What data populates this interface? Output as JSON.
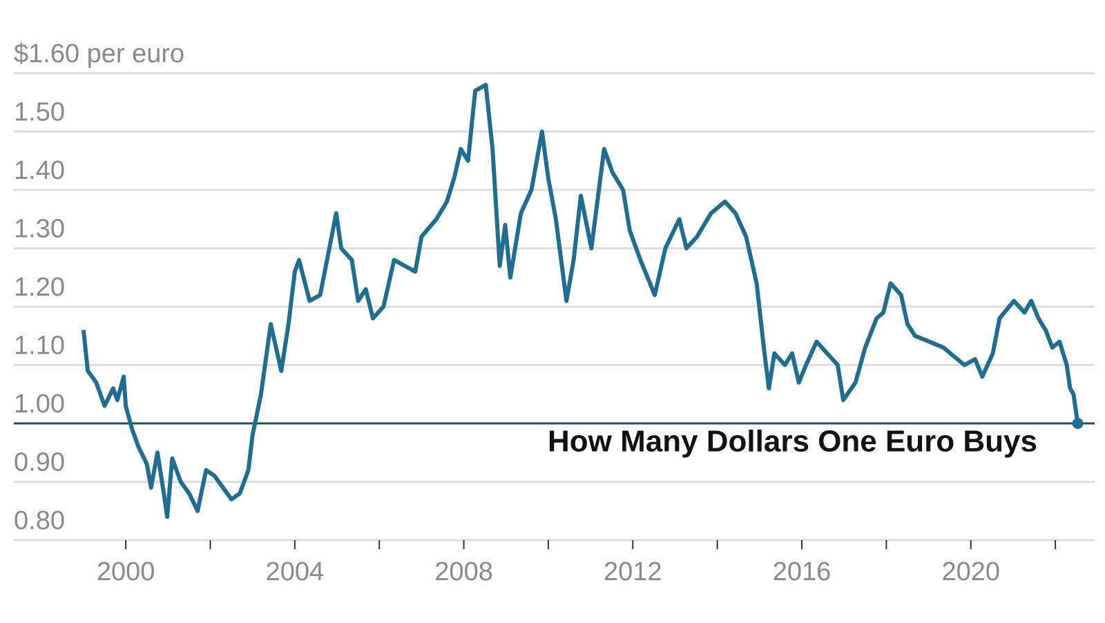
{
  "chart_data": {
    "type": "line",
    "title": "How Many Dollars One Euro Buys",
    "x": [
      1999.0,
      1999.1,
      1999.3,
      1999.5,
      1999.7,
      1999.8,
      1999.95,
      2000.0,
      2000.15,
      2000.3,
      2000.5,
      2000.6,
      2000.75,
      2000.9,
      2000.98,
      2001.1,
      2001.3,
      2001.5,
      2001.7,
      2001.9,
      2002.1,
      2002.3,
      2002.5,
      2002.7,
      2002.9,
      2003.0,
      2003.2,
      2003.43,
      2003.68,
      2003.85,
      2004.0,
      2004.1,
      2004.35,
      2004.6,
      2004.98,
      2005.1,
      2005.35,
      2005.5,
      2005.68,
      2005.85,
      2006.1,
      2006.35,
      2006.6,
      2006.85,
      2007.0,
      2007.35,
      2007.6,
      2007.77,
      2007.93,
      2008.1,
      2008.27,
      2008.52,
      2008.68,
      2008.85,
      2008.98,
      2009.1,
      2009.35,
      2009.6,
      2009.85,
      2010.0,
      2010.18,
      2010.43,
      2010.6,
      2010.77,
      2011.02,
      2011.32,
      2011.52,
      2011.77,
      2011.93,
      2012.18,
      2012.52,
      2012.77,
      2013.1,
      2013.27,
      2013.52,
      2013.85,
      2014.18,
      2014.43,
      2014.68,
      2014.93,
      2015.1,
      2015.22,
      2015.35,
      2015.6,
      2015.77,
      2015.93,
      2016.1,
      2016.35,
      2016.6,
      2016.85,
      2016.98,
      2017.27,
      2017.5,
      2017.77,
      2017.93,
      2018.1,
      2018.35,
      2018.5,
      2018.68,
      2019.02,
      2019.35,
      2019.68,
      2019.85,
      2020.1,
      2020.27,
      2020.52,
      2020.68,
      2021.02,
      2021.27,
      2021.43,
      2021.6,
      2021.77,
      2021.93,
      2022.1,
      2022.27,
      2022.35,
      2022.43,
      2022.53
    ],
    "series": [
      {
        "color": "#1f6e91",
        "values": [
          1.16,
          1.09,
          1.07,
          1.03,
          1.06,
          1.04,
          1.08,
          1.03,
          0.99,
          0.96,
          0.93,
          0.89,
          0.95,
          0.88,
          0.84,
          0.94,
          0.9,
          0.88,
          0.85,
          0.92,
          0.91,
          0.89,
          0.87,
          0.88,
          0.92,
          0.98,
          1.05,
          1.17,
          1.09,
          1.17,
          1.26,
          1.28,
          1.21,
          1.22,
          1.36,
          1.3,
          1.28,
          1.21,
          1.23,
          1.18,
          1.2,
          1.28,
          1.27,
          1.26,
          1.32,
          1.35,
          1.38,
          1.42,
          1.47,
          1.45,
          1.57,
          1.58,
          1.47,
          1.27,
          1.34,
          1.25,
          1.36,
          1.4,
          1.5,
          1.42,
          1.35,
          1.21,
          1.28,
          1.39,
          1.3,
          1.47,
          1.43,
          1.4,
          1.33,
          1.28,
          1.22,
          1.3,
          1.35,
          1.3,
          1.32,
          1.36,
          1.38,
          1.36,
          1.32,
          1.24,
          1.13,
          1.06,
          1.12,
          1.1,
          1.12,
          1.07,
          1.1,
          1.14,
          1.12,
          1.1,
          1.04,
          1.07,
          1.13,
          1.18,
          1.19,
          1.24,
          1.22,
          1.17,
          1.15,
          1.14,
          1.13,
          1.11,
          1.1,
          1.11,
          1.08,
          1.12,
          1.18,
          1.21,
          1.19,
          1.21,
          1.18,
          1.16,
          1.13,
          1.14,
          1.1,
          1.06,
          1.05,
          1.0
        ]
      }
    ],
    "xlim": [
      1997.35,
      2022.93
    ],
    "xticks": [
      2000,
      2004,
      2008,
      2012,
      2016,
      2020
    ],
    "xminor_ticks": [
      2002,
      2006,
      2010,
      2014,
      2018,
      2022
    ],
    "ylim": [
      0.8,
      1.6
    ],
    "yticks": [
      {
        "value": 0.8,
        "label": "0.80"
      },
      {
        "value": 0.9,
        "label": "0.90"
      },
      {
        "value": 1.0,
        "label": "1.00"
      },
      {
        "value": 1.1,
        "label": "1.10"
      },
      {
        "value": 1.2,
        "label": "1.20"
      },
      {
        "value": 1.3,
        "label": "1.30"
      },
      {
        "value": 1.4,
        "label": "1.40"
      },
      {
        "value": 1.5,
        "label": "1.50"
      },
      {
        "value": 1.6,
        "label": "$1.60 per euro"
      }
    ],
    "reference_line": 1,
    "grid": true
  }
}
